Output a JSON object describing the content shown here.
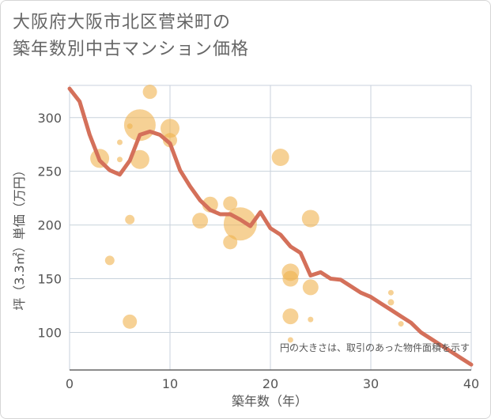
{
  "title_lines": [
    "大阪府大阪市北区菅栄町の",
    "築年数別中古マンション価格"
  ],
  "chart_data": {
    "type": "scatter",
    "title": "大阪府大阪市北区菅栄町の築年数別中古マンション価格",
    "xlabel": "築年数（年）",
    "ylabel": "坪（3.3㎡）単価（万円）",
    "xlim": [
      0,
      40
    ],
    "ylim": [
      65,
      330
    ],
    "xticks": [
      "0",
      "10",
      "20",
      "30",
      "40"
    ],
    "yticks": [
      "100",
      "150",
      "200",
      "250",
      "300"
    ],
    "grid": true,
    "annotation": "円の大きさは、取引のあった物件面積を示す",
    "colors": {
      "bubble": "#f0b24f",
      "line": "#d4705a",
      "grid": "#c8d2dc"
    },
    "bubbles": [
      {
        "x": 3,
        "y": 262,
        "size": 12
      },
      {
        "x": 4,
        "y": 167,
        "size": 6
      },
      {
        "x": 5,
        "y": 277,
        "size": 3.5
      },
      {
        "x": 5,
        "y": 261,
        "size": 3.5
      },
      {
        "x": 6,
        "y": 292,
        "size": 3.5
      },
      {
        "x": 6,
        "y": 205,
        "size": 6
      },
      {
        "x": 6,
        "y": 110,
        "size": 9
      },
      {
        "x": 7,
        "y": 293,
        "size": 20
      },
      {
        "x": 7,
        "y": 261,
        "size": 12
      },
      {
        "x": 8,
        "y": 324,
        "size": 9
      },
      {
        "x": 10,
        "y": 290,
        "size": 12
      },
      {
        "x": 10,
        "y": 279,
        "size": 9
      },
      {
        "x": 13,
        "y": 204,
        "size": 10
      },
      {
        "x": 14,
        "y": 219,
        "size": 10
      },
      {
        "x": 16,
        "y": 220,
        "size": 9
      },
      {
        "x": 16,
        "y": 184,
        "size": 9
      },
      {
        "x": 17,
        "y": 201,
        "size": 21
      },
      {
        "x": 21,
        "y": 263,
        "size": 11
      },
      {
        "x": 22,
        "y": 156,
        "size": 11
      },
      {
        "x": 22,
        "y": 150,
        "size": 10
      },
      {
        "x": 22,
        "y": 115,
        "size": 10
      },
      {
        "x": 22,
        "y": 93,
        "size": 3.5
      },
      {
        "x": 24,
        "y": 206,
        "size": 11
      },
      {
        "x": 24,
        "y": 142,
        "size": 10
      },
      {
        "x": 24,
        "y": 112,
        "size": 3.5
      },
      {
        "x": 32,
        "y": 137,
        "size": 3.5
      },
      {
        "x": 32,
        "y": 128,
        "size": 4
      },
      {
        "x": 33,
        "y": 108,
        "size": 3.5
      }
    ],
    "trend": {
      "x": [
        0,
        1,
        2,
        3,
        4,
        5,
        6,
        7,
        8,
        9,
        10,
        11,
        12,
        13,
        14,
        15,
        16,
        17,
        18,
        19,
        20,
        21,
        22,
        23,
        24,
        25,
        26,
        27,
        28,
        29,
        30,
        31,
        32,
        33,
        34,
        35,
        36,
        37,
        38,
        39,
        40
      ],
      "y": [
        327,
        315,
        284,
        260,
        251,
        247,
        260,
        284,
        287,
        284,
        276,
        251,
        236,
        223,
        214,
        210,
        210,
        205,
        199,
        212,
        197,
        191,
        180,
        174,
        153,
        156,
        150,
        149,
        143,
        137,
        133,
        127,
        121,
        115,
        109,
        100,
        94,
        88,
        82,
        76,
        70
      ]
    }
  }
}
